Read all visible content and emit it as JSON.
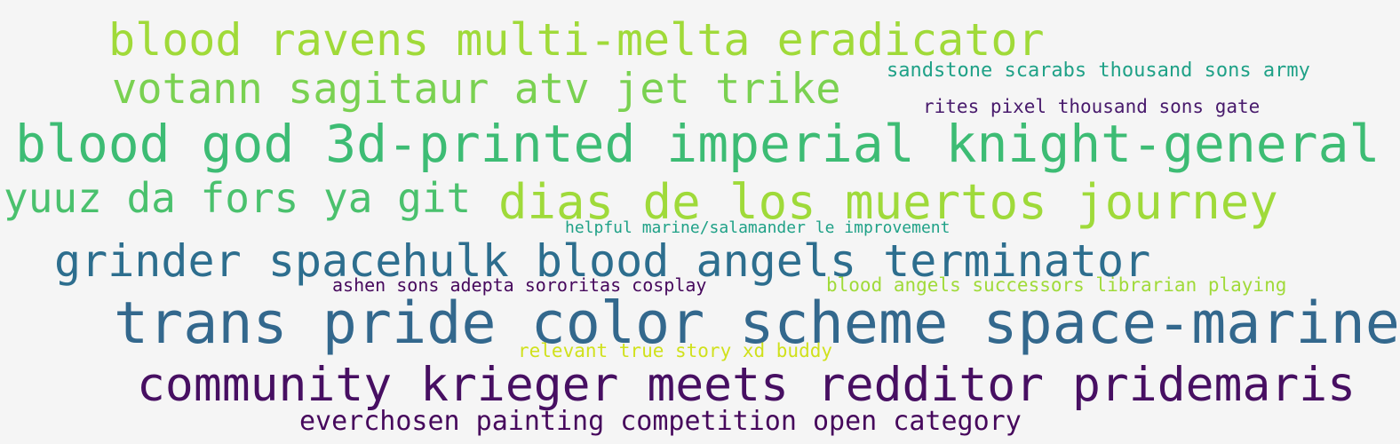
{
  "words": [
    {
      "text": "blood ravens multi-melta eradicator",
      "color": "#a0da39"
    },
    {
      "text": "votann sagitaur atv jet trike",
      "color": "#7ad151"
    },
    {
      "text": "sandstone scarabs thousand sons army",
      "color": "#1fa187"
    },
    {
      "text": "rites pixel thousand sons gate",
      "color": "#481a6c"
    },
    {
      "text": "blood god 3d-printed imperial knight-general",
      "color": "#3dbc74"
    },
    {
      "text": "yuuz da fors ya git",
      "color": "#4ac16d"
    },
    {
      "text": "dias de los muertos journey",
      "color": "#9fda3a"
    },
    {
      "text": "helpful marine/salamander le improvement",
      "color": "#1fa187"
    },
    {
      "text": "grinder spacehulk blood angels terminator",
      "color": "#2d6e8e"
    },
    {
      "text": "ashen sons adepta sororitas cosplay",
      "color": "#46085c"
    },
    {
      "text": "blood angels successors librarian playing",
      "color": "#a0da39"
    },
    {
      "text": "trans pride color scheme space-marine",
      "color": "#33688d"
    },
    {
      "text": "relevant true story xd buddy",
      "color": "#d0e11c"
    },
    {
      "text": "community krieger meets redditor pridemaris",
      "color": "#470f62"
    },
    {
      "text": "everchosen painting competition open category",
      "color": "#46085c"
    }
  ]
}
